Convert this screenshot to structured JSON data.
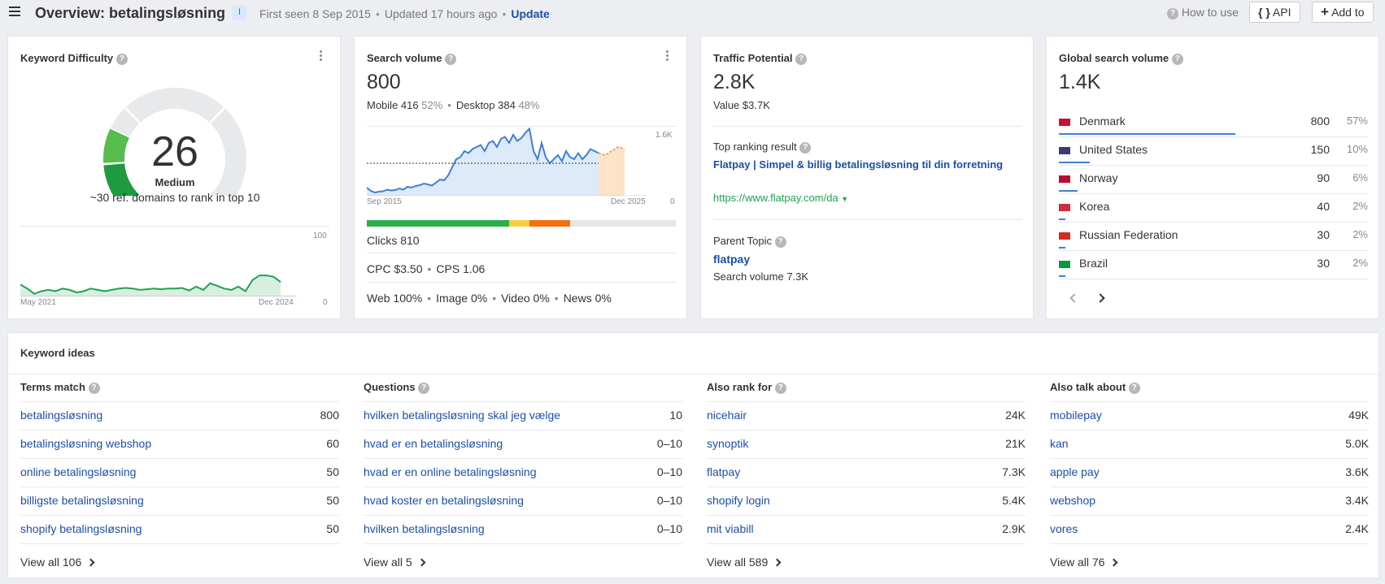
{
  "header": {
    "title": "Overview: betalingsløsning",
    "intent_badge": "I",
    "first_seen": "First seen 8 Sep 2015",
    "updated": "Updated 17 hours ago",
    "update_label": "Update",
    "how_to_use": "How to use",
    "api_label": "API",
    "add_to_label": "Add to"
  },
  "kd": {
    "title": "Keyword Difficulty",
    "value": "26",
    "level": "Medium",
    "subtitle": "~30 ref. domains to rank in top 10",
    "chart_max": "100",
    "chart_min": "0",
    "x_start": "May 2021",
    "x_end": "Dec 2024"
  },
  "sv": {
    "title": "Search volume",
    "value": "800",
    "mobile_label": "Mobile 416",
    "mobile_pct": "52%",
    "desktop_label": "Desktop 384",
    "desktop_pct": "48%",
    "y_max": "1.6K",
    "y_min": "0",
    "x_start": "Sep 2015",
    "x_end": "Dec 2025",
    "clicks": "Clicks 810",
    "cpc": "CPC $3.50",
    "cps": "CPS 1.06",
    "web": "Web 100%",
    "image": "Image 0%",
    "video": "Video 0%",
    "news": "News 0%"
  },
  "tp": {
    "title": "Traffic Potential",
    "value": "2.8K",
    "value_line": "Value $3.7K",
    "top_label": "Top ranking result",
    "top_title": "Flatpay | Simpel & billig betalingsløsning til din forretning",
    "top_url": "https://www.flatpay.com/da",
    "parent_label": "Parent Topic",
    "parent_topic": "flatpay",
    "parent_volume": "Search volume 7.3K"
  },
  "gsv": {
    "title": "Global search volume",
    "value": "1.4K",
    "countries": [
      {
        "name": "Denmark",
        "volume": "800",
        "pct": "57%",
        "share": 0.57
      },
      {
        "name": "United States",
        "volume": "150",
        "pct": "10%",
        "share": 0.1
      },
      {
        "name": "Norway",
        "volume": "90",
        "pct": "6%",
        "share": 0.06
      },
      {
        "name": "Korea",
        "volume": "40",
        "pct": "2%",
        "share": 0.02
      },
      {
        "name": "Russian Federation",
        "volume": "30",
        "pct": "2%",
        "share": 0.02
      },
      {
        "name": "Brazil",
        "volume": "30",
        "pct": "2%",
        "share": 0.02
      }
    ]
  },
  "ideas": {
    "title": "Keyword ideas",
    "columns": [
      {
        "title": "Terms match",
        "view_all": "View all 106",
        "rows": [
          {
            "kw": "betalingsløsning",
            "vol": "800"
          },
          {
            "kw": "betalingsløsning webshop",
            "vol": "60"
          },
          {
            "kw": "online betalingsløsning",
            "vol": "50"
          },
          {
            "kw": "billigste betalingsløsning",
            "vol": "50"
          },
          {
            "kw": "shopify betalingsløsning",
            "vol": "50"
          }
        ]
      },
      {
        "title": "Questions",
        "view_all": "View all 5",
        "rows": [
          {
            "kw": "hvilken betalingsløsning skal jeg vælge",
            "vol": "10"
          },
          {
            "kw": "hvad er en betalingsløsning",
            "vol": "0–10"
          },
          {
            "kw": "hvad er en online betalingsløsning",
            "vol": "0–10"
          },
          {
            "kw": "hvad koster en betalingsløsning",
            "vol": "0–10"
          },
          {
            "kw": "hvilken betalingsløsning",
            "vol": "0–10"
          }
        ]
      },
      {
        "title": "Also rank for",
        "view_all": "View all 589",
        "rows": [
          {
            "kw": "nicehair",
            "vol": "24K"
          },
          {
            "kw": "synoptik",
            "vol": "21K"
          },
          {
            "kw": "flatpay",
            "vol": "7.3K"
          },
          {
            "kw": "shopify login",
            "vol": "5.4K"
          },
          {
            "kw": "mit viabill",
            "vol": "2.9K"
          }
        ]
      },
      {
        "title": "Also talk about",
        "view_all": "View all 76",
        "rows": [
          {
            "kw": "mobilepay",
            "vol": "49K"
          },
          {
            "kw": "kan",
            "vol": "5.0K"
          },
          {
            "kw": "apple pay",
            "vol": "3.6K"
          },
          {
            "kw": "webshop",
            "vol": "3.4K"
          },
          {
            "kw": "vores",
            "vol": "2.4K"
          }
        ]
      }
    ]
  },
  "colors": {
    "accent": "#1b4fa9",
    "green": "#21a153",
    "kd_gauge": "#2eae4a",
    "line": "#3f7fd4"
  }
}
